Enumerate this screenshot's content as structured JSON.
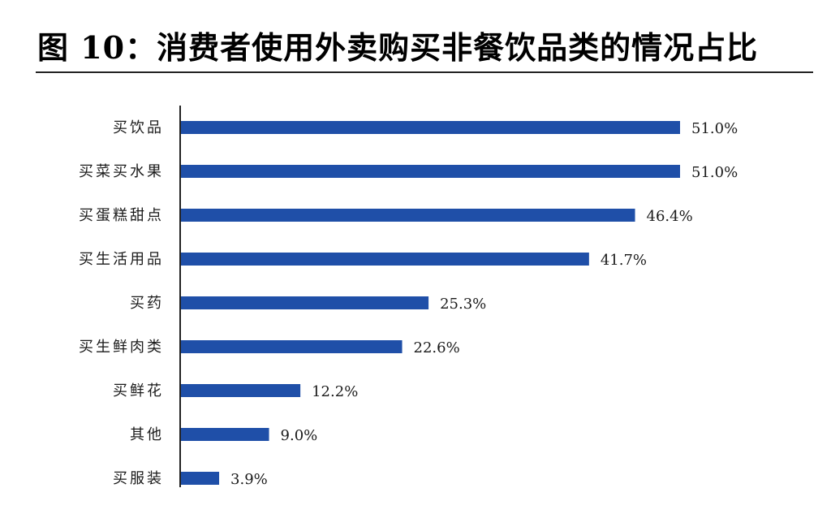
{
  "title": "图 10：消费者使用外卖购买非餐饮品类的情况占比",
  "colors": {
    "bar": "#1f4fa8",
    "axis": "#222222",
    "text": "#1a1a1a"
  },
  "chart_data": {
    "type": "bar",
    "orientation": "horizontal",
    "categories": [
      "买饮品",
      "买菜买水果",
      "买蛋糕甜点",
      "买生活用品",
      "买药",
      "买生鲜肉类",
      "买鲜花",
      "其他",
      "买服装"
    ],
    "values": [
      51.0,
      51.0,
      46.4,
      41.7,
      25.3,
      22.6,
      12.2,
      9.0,
      3.9
    ],
    "value_labels": [
      "51.0%",
      "51.0%",
      "46.4%",
      "41.7%",
      "25.3%",
      "22.6%",
      "12.2%",
      "9.0%",
      "3.9%"
    ],
    "unit": "%",
    "xlim": [
      0,
      51.0
    ],
    "grid": false,
    "legend": "none"
  }
}
